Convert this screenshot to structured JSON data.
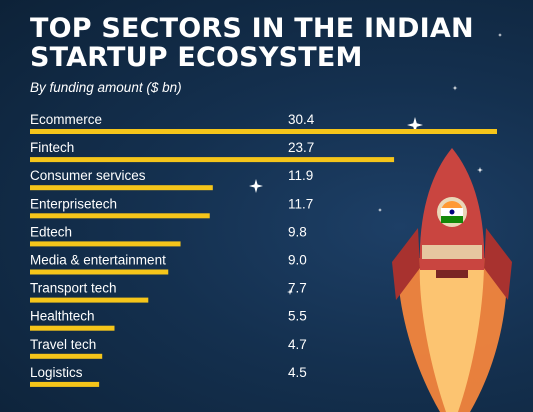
{
  "header": {
    "title": "TOP SECTORS IN THE INDIAN STARTUP ECOSYSTEM",
    "subtitle": "By funding amount ($ bn)"
  },
  "colors": {
    "background": "#14304f",
    "bar": "#f5c51a",
    "text": "#ffffff",
    "rocket_body": "#c94540",
    "flame": "#ff8a3c"
  },
  "icons": [
    "rocket-icon",
    "sparkle-icon"
  ],
  "chart_data": {
    "type": "bar",
    "orientation": "horizontal",
    "title": "TOP SECTORS IN THE INDIAN STARTUP ECOSYSTEM",
    "subtitle": "By funding amount ($ bn)",
    "categories": [
      "Ecommerce",
      "Fintech",
      "Consumer services",
      "Enterprisetech",
      "Edtech",
      "Media & entertainment",
      "Transport tech",
      "Healthtech",
      "Travel tech",
      "Logistics"
    ],
    "values": [
      30.4,
      23.7,
      11.9,
      11.7,
      9.8,
      9.0,
      7.7,
      5.5,
      4.7,
      4.5
    ],
    "value_labels": [
      "30.4",
      "23.7",
      "11.9",
      "11.7",
      "9.8",
      "9.0",
      "7.7",
      "5.5",
      "4.7",
      "4.5"
    ],
    "xlim": [
      0,
      30.4
    ],
    "grid": false,
    "legend": "none"
  }
}
